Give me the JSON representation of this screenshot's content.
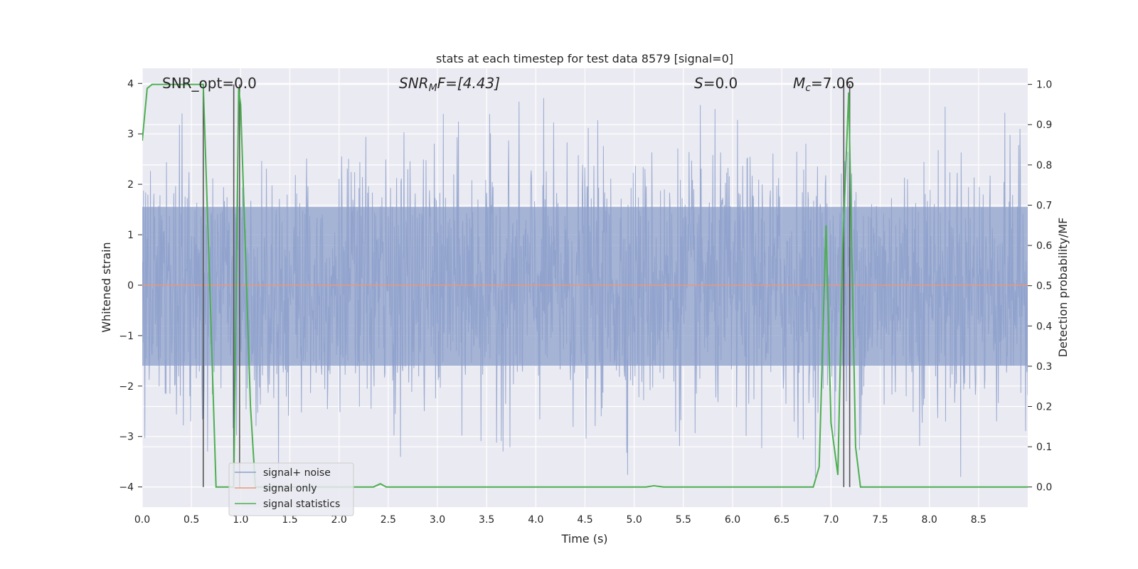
{
  "chart_data": {
    "type": "line",
    "title": "stats at each timestep for test data 8579 [signal=0]",
    "xlabel": "Time (s)",
    "ylabel_left": "Whitened strain",
    "ylabel_right": "Detection probability/MF",
    "xlim": [
      0.0,
      9.0
    ],
    "ylim_left": [
      -4.4,
      4.3
    ],
    "ylim_right": [
      -0.05,
      1.04
    ],
    "x_ticks": [
      "0.0",
      "0.5",
      "1.0",
      "1.5",
      "2.0",
      "2.5",
      "3.0",
      "3.5",
      "4.0",
      "4.5",
      "5.0",
      "5.5",
      "6.0",
      "6.5",
      "7.0",
      "7.5",
      "8.0",
      "8.5"
    ],
    "y_left_ticks": [
      "4",
      "3",
      "2",
      "1",
      "0",
      "−1",
      "−2",
      "−3",
      "−4"
    ],
    "y_right_ticks": [
      "1.0",
      "0.9",
      "0.8",
      "0.7",
      "0.6",
      "0.5",
      "0.4",
      "0.3",
      "0.2",
      "0.1",
      "0.0"
    ],
    "annotations": {
      "snr_opt": "SNR_opt=0.0",
      "snr_mf_main": "SNR",
      "snr_mf_sub": "M",
      "snr_mf_rest": "F=[4.43]",
      "s_var": "S",
      "s_val": "=0.0",
      "mc_var": "M",
      "mc_sub": "c",
      "mc_val": "=7.06"
    },
    "vlines": [
      0.62,
      0.93,
      0.99,
      7.13,
      7.19
    ],
    "series": [
      {
        "name": "signal+ noise",
        "color": "#8da0cb",
        "axis": "left",
        "kind": "noise",
        "amplitude_typical": 1.6,
        "amplitude_max": 3.8,
        "samples": 2048,
        "seed": 8579
      },
      {
        "name": "signal only",
        "color": "#e9967a",
        "axis": "left",
        "values_flat": 0.0
      },
      {
        "name": "signal statistics",
        "color": "#4caf50",
        "axis": "right",
        "x": [
          0.0,
          0.05,
          0.1,
          0.2,
          0.3,
          0.4,
          0.5,
          0.6,
          0.62,
          0.68,
          0.75,
          0.8,
          0.9,
          0.93,
          0.98,
          1.0,
          1.1,
          1.15,
          1.3,
          1.5,
          2.0,
          2.35,
          2.42,
          2.48,
          2.55,
          3.0,
          4.0,
          5.0,
          5.12,
          5.2,
          5.3,
          6.0,
          6.5,
          6.82,
          6.88,
          6.95,
          7.0,
          7.07,
          7.12,
          7.18,
          7.25,
          7.3,
          7.5,
          8.0,
          9.0
        ],
        "y": [
          0.86,
          0.99,
          1.0,
          1.0,
          1.0,
          1.0,
          1.0,
          1.0,
          1.0,
          0.55,
          0.0,
          0.0,
          0.0,
          0.0,
          0.99,
          0.95,
          0.2,
          0.0,
          0.0,
          0.0,
          0.0,
          0.0,
          0.008,
          0.0,
          0.0,
          0.0,
          0.0,
          0.0,
          0.0,
          0.003,
          0.0,
          0.0,
          0.0,
          0.0,
          0.05,
          0.65,
          0.16,
          0.03,
          0.6,
          0.98,
          0.1,
          0.0,
          0.0,
          0.0,
          0.0
        ]
      }
    ],
    "legend": {
      "placement": "lower-left",
      "entries": [
        "signal+ noise",
        "signal only",
        "signal statistics"
      ]
    }
  }
}
